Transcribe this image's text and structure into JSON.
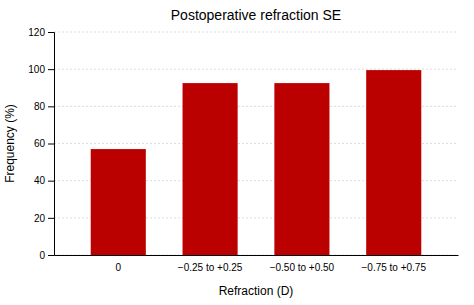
{
  "chart_data": {
    "type": "bar",
    "title": "Postoperative refraction SE",
    "xlabel": "Refraction (D)",
    "ylabel": "Frequency (%)",
    "categories": [
      "0",
      "−0.25 to +0.25",
      "−0.50 to +0.50",
      "−0.75 to +0.75"
    ],
    "values": [
      57,
      92.5,
      92.5,
      99.5
    ],
    "color": "#bb0000",
    "ylim": [
      0,
      120
    ],
    "yticks": [
      0,
      20,
      40,
      60,
      80,
      100,
      120
    ],
    "grid": true
  }
}
